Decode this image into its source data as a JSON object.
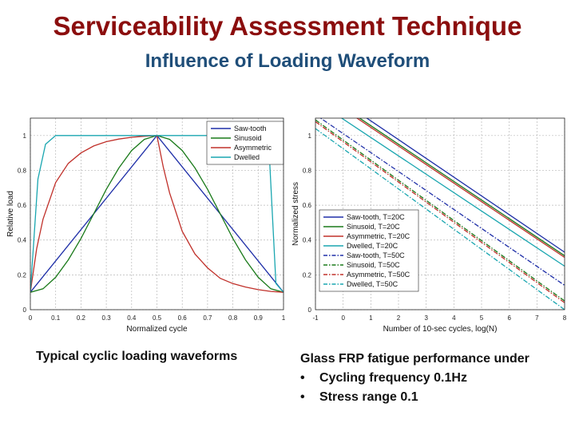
{
  "slide": {
    "title": "Serviceability Assessment Technique",
    "subtitle": "Influence of Loading Waveform"
  },
  "captions": {
    "left": "Typical cyclic loading waveforms",
    "right_heading": "Glass FRP fatigue performance under",
    "bullet_symbol": "•",
    "bullets": [
      "Cycling frequency 0.1Hz",
      "Stress range 0.1"
    ]
  },
  "chart_data": [
    {
      "type": "line",
      "xlabel": "Normalized cycle",
      "ylabel": "Relative load",
      "xlim": [
        0,
        1
      ],
      "ylim": [
        0,
        1.1
      ],
      "xticks": [
        0,
        0.1,
        0.2,
        0.3,
        0.4,
        0.5,
        0.6,
        0.7,
        0.8,
        0.9,
        1
      ],
      "yticks": [
        0,
        0.2,
        0.4,
        0.6,
        0.8,
        1
      ],
      "grid": true,
      "legend": "top-right",
      "series": [
        {
          "name": "Saw-tooth",
          "color": "#1f2fa8",
          "x": [
            0,
            0.5,
            1
          ],
          "y": [
            0.1,
            1,
            0.1
          ]
        },
        {
          "name": "Sinusoid",
          "color": "#1a7a1a",
          "x": [
            0,
            0.05,
            0.1,
            0.15,
            0.2,
            0.25,
            0.3,
            0.35,
            0.4,
            0.45,
            0.5,
            0.55,
            0.6,
            0.65,
            0.7,
            0.75,
            0.8,
            0.85,
            0.9,
            0.95,
            1
          ],
          "y": [
            0.1,
            0.12,
            0.186,
            0.286,
            0.409,
            0.55,
            0.691,
            0.814,
            0.914,
            0.978,
            1,
            0.978,
            0.914,
            0.814,
            0.691,
            0.55,
            0.409,
            0.286,
            0.186,
            0.12,
            0.1
          ]
        },
        {
          "name": "Asymmetric",
          "color": "#c0302a",
          "x": [
            0,
            0.025,
            0.05,
            0.1,
            0.15,
            0.2,
            0.25,
            0.3,
            0.35,
            0.4,
            0.45,
            0.5,
            0.525,
            0.55,
            0.6,
            0.65,
            0.7,
            0.75,
            0.8,
            0.85,
            0.9,
            0.95,
            1
          ],
          "y": [
            0.1,
            0.35,
            0.52,
            0.73,
            0.84,
            0.9,
            0.94,
            0.965,
            0.98,
            0.99,
            0.996,
            1,
            0.82,
            0.67,
            0.45,
            0.32,
            0.24,
            0.18,
            0.15,
            0.13,
            0.115,
            0.105,
            0.1
          ]
        },
        {
          "name": "Dwelled",
          "color": "#1aa6b0",
          "x": [
            0,
            0.03,
            0.06,
            0.1,
            0.94,
            0.97,
            1
          ],
          "y": [
            0.1,
            0.75,
            0.95,
            1,
            1,
            0.15,
            0.1
          ]
        }
      ]
    },
    {
      "type": "line",
      "xlabel": "Number of 10-sec cycles, log(N)",
      "ylabel": "Normalized stress",
      "xlim": [
        -1,
        8
      ],
      "ylim": [
        0,
        1.1
      ],
      "xticks": [
        -1,
        0,
        1,
        2,
        3,
        4,
        5,
        6,
        7,
        8
      ],
      "yticks": [
        0,
        0.2,
        0.4,
        0.6,
        0.8,
        1
      ],
      "grid": true,
      "legend": "bottom-right",
      "series": [
        {
          "name": "Saw-tooth, T=20C",
          "color": "#1f2fa8",
          "dash": "solid",
          "x": [
            -1,
            8
          ],
          "y": [
            1.3,
            0.33
          ]
        },
        {
          "name": "Sinusoid, T=20C",
          "color": "#1a7a1a",
          "dash": "solid",
          "x": [
            -1,
            8
          ],
          "y": [
            1.27,
            0.31
          ]
        },
        {
          "name": "Asymmetric, T=20C",
          "color": "#c0302a",
          "dash": "solid",
          "x": [
            -1,
            8
          ],
          "y": [
            1.26,
            0.3
          ]
        },
        {
          "name": "Dwelled, T=20C",
          "color": "#1aa6b0",
          "dash": "solid",
          "x": [
            -1,
            8
          ],
          "y": [
            1.2,
            0.25
          ]
        },
        {
          "name": "Saw-tooth, T=50C",
          "color": "#1f2fa8",
          "dash": "dashdot",
          "x": [
            -1,
            8
          ],
          "y": [
            1.12,
            0.14
          ]
        },
        {
          "name": "Sinusoid, T=50C",
          "color": "#1a7a1a",
          "dash": "dashdot",
          "x": [
            -1,
            8
          ],
          "y": [
            1.09,
            0.05
          ]
        },
        {
          "name": "Asymmetric, T=50C",
          "color": "#c0302a",
          "dash": "dashdot",
          "x": [
            -1,
            8
          ],
          "y": [
            1.08,
            0.04
          ]
        },
        {
          "name": "Dwelled, T=50C",
          "color": "#1aa6b0",
          "dash": "dashdot",
          "x": [
            -1,
            8
          ],
          "y": [
            1.04,
            0.0
          ]
        }
      ]
    }
  ]
}
